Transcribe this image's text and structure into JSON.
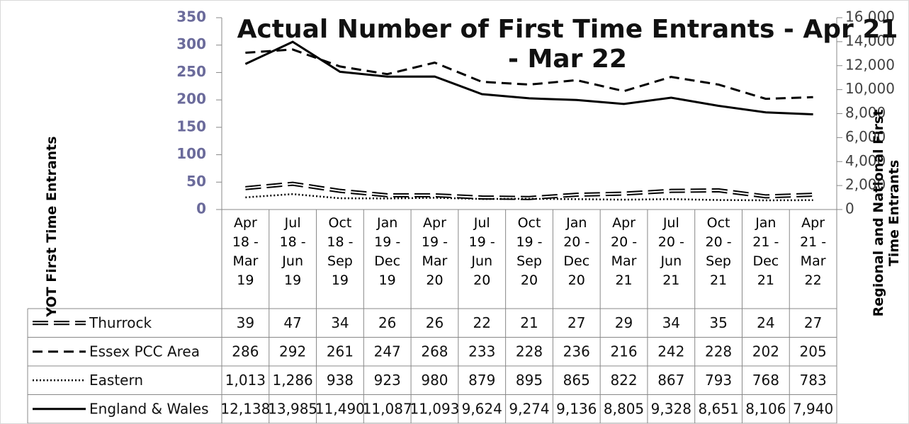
{
  "chart_data": {
    "type": "line",
    "title": "Actual Number of First Time Entrants - Apr 21 - Mar 22",
    "y_label": "YOT First Time Entrants",
    "y2_label": "Regional and National First Time Entrants",
    "categories": [
      "Apr 18 - Mar 19",
      "Jul 18 - Jun 19",
      "Oct 18 - Sep 19",
      "Jan 19 - Dec 19",
      "Apr 19 - Mar 20",
      "Jul 19 - Jun 20",
      "Oct 19 - Sep 20",
      "Jan 20 - Dec 20",
      "Apr 20 - Mar 21",
      "Jul 20 - Jun 21",
      "Oct 20 - Sep 21",
      "Jan 21 - Dec 21",
      "Apr 21 - Mar 22"
    ],
    "series": [
      {
        "name": "Thurrock",
        "color": "#000000",
        "style": "double",
        "axis": "y",
        "values": [
          39,
          47,
          34,
          26,
          26,
          22,
          21,
          27,
          29,
          34,
          35,
          24,
          27
        ]
      },
      {
        "name": "Essex PCC Area",
        "color": "#000000",
        "style": "dashed",
        "axis": "y",
        "values": [
          286,
          292,
          261,
          247,
          268,
          233,
          228,
          236,
          216,
          242,
          228,
          202,
          205
        ]
      },
      {
        "name": "Eastern",
        "color": "#000000",
        "style": "dotted",
        "axis": "y2",
        "values": [
          1013,
          1286,
          938,
          923,
          980,
          879,
          895,
          865,
          822,
          867,
          793,
          768,
          783
        ],
        "value_labels": [
          "1,013",
          "1,286",
          "938",
          "923",
          "980",
          "879",
          "895",
          "865",
          "822",
          "867",
          "793",
          "768",
          "783"
        ]
      },
      {
        "name": "England & Wales",
        "color": "#000000",
        "style": "solid",
        "axis": "y2",
        "values": [
          12138,
          13985,
          11490,
          11087,
          11093,
          9624,
          9274,
          9136,
          8805,
          9328,
          8651,
          8106,
          7940
        ],
        "value_labels": [
          "12,138",
          "13,985",
          "11,490",
          "11,087",
          "11,093",
          "9,624",
          "9,274",
          "9,136",
          "8,805",
          "9,328",
          "8,651",
          "8,106",
          "7,940"
        ]
      }
    ],
    "ylim": [
      0,
      350
    ],
    "yticks": [
      0,
      50,
      100,
      150,
      200,
      250,
      300,
      350
    ],
    "y2lim": [
      0,
      16000
    ],
    "y2ticks": [
      0,
      {
        "value": 2000,
        "label": "2,000"
      },
      {
        "value": 4000,
        "label": "4,000"
      },
      {
        "value": 6000,
        "label": "6,000"
      },
      {
        "value": 8000,
        "label": "8,000"
      },
      {
        "value": 10000,
        "label": "10,000"
      },
      {
        "value": 12000,
        "label": "12,000"
      },
      {
        "value": 14000,
        "label": "14,000"
      },
      {
        "value": 16000,
        "label": "16,000"
      }
    ],
    "ytick_color": "#6b6b9b"
  }
}
